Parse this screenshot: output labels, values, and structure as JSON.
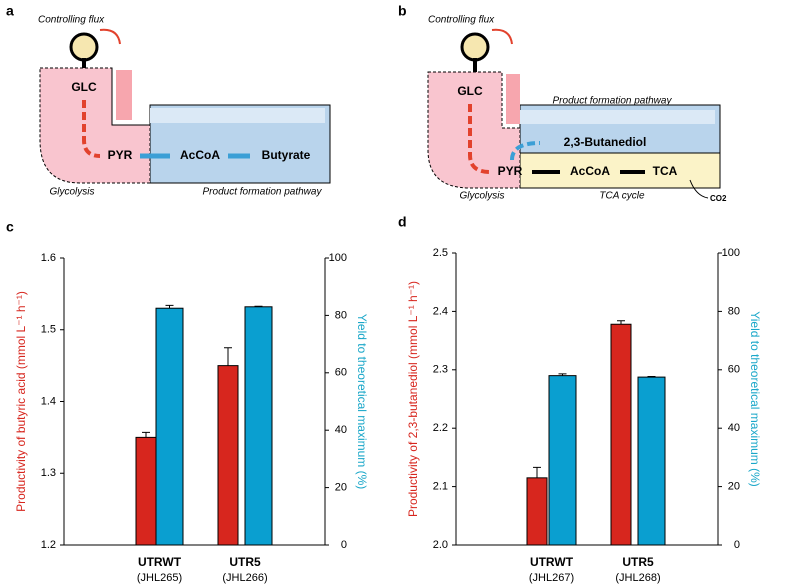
{
  "diagrams": [
    {
      "panel": "a",
      "flux": "Controlling flux",
      "glc": "GLC",
      "pyr": "PYR",
      "accoa": "AcCoA",
      "product": "Butyrate",
      "glycolysis": "Glycolysis",
      "pathway": "Product formation pathway"
    },
    {
      "panel": "b",
      "flux": "Controlling flux",
      "glc": "GLC",
      "pathway": "Product formation pathway",
      "product": "2,3-Butanediol",
      "pyr": "PYR",
      "accoa": "AcCoA",
      "tca": "TCA",
      "glycolysis": "Glycolysis",
      "cycle": "TCA cycle",
      "co2": "CO2"
    }
  ],
  "chart_data": [
    {
      "type": "bar",
      "panel": "c",
      "categories": [
        "UTRWT",
        "UTR5"
      ],
      "strains": [
        "(JHL265)",
        "(JHL266)"
      ],
      "ylabel": "Productivity of butyric acid (mmol L⁻¹ h⁻¹)",
      "y2label": "Yield to theoretical maximum (%)",
      "ylim": [
        1.2,
        1.6
      ],
      "yticks": [
        1.2,
        1.3,
        1.4,
        1.5,
        1.6
      ],
      "y2lim": [
        0,
        100
      ],
      "y2ticks": [
        0,
        20,
        40,
        60,
        80,
        100
      ],
      "series": [
        {
          "color": "#d7261e",
          "values": [
            1.35,
            1.45
          ],
          "errors": [
            0.007,
            0.025
          ]
        },
        {
          "color": "#0a9fd0",
          "axis": "y2",
          "values": [
            82.5,
            83
          ],
          "errors": [
            1,
            0.2
          ]
        }
      ]
    },
    {
      "type": "bar",
      "panel": "d",
      "categories": [
        "UTRWT",
        "UTR5"
      ],
      "strains": [
        "(JHL267)",
        "(JHL268)"
      ],
      "ylabel": "Productivity of 2,3-butanediol (mmol L⁻¹ h⁻¹)",
      "y2label": "Yield to theoretical maximum (%)",
      "ylim": [
        2.0,
        2.5
      ],
      "yticks": [
        {
          "value": 2.0,
          "label": "2.0"
        },
        2.1,
        2.2,
        2.3,
        2.4,
        2.5
      ],
      "y2lim": [
        0,
        100
      ],
      "y2ticks": [
        0,
        20,
        40,
        60,
        80,
        100
      ],
      "series": [
        {
          "color": "#d7261e",
          "values": [
            2.115,
            2.378
          ],
          "errors": [
            0.018,
            0.006
          ]
        },
        {
          "color": "#0a9fd0",
          "axis": "y2",
          "values": [
            58,
            57.5
          ],
          "errors": [
            0.6,
            0.2
          ]
        }
      ]
    }
  ]
}
